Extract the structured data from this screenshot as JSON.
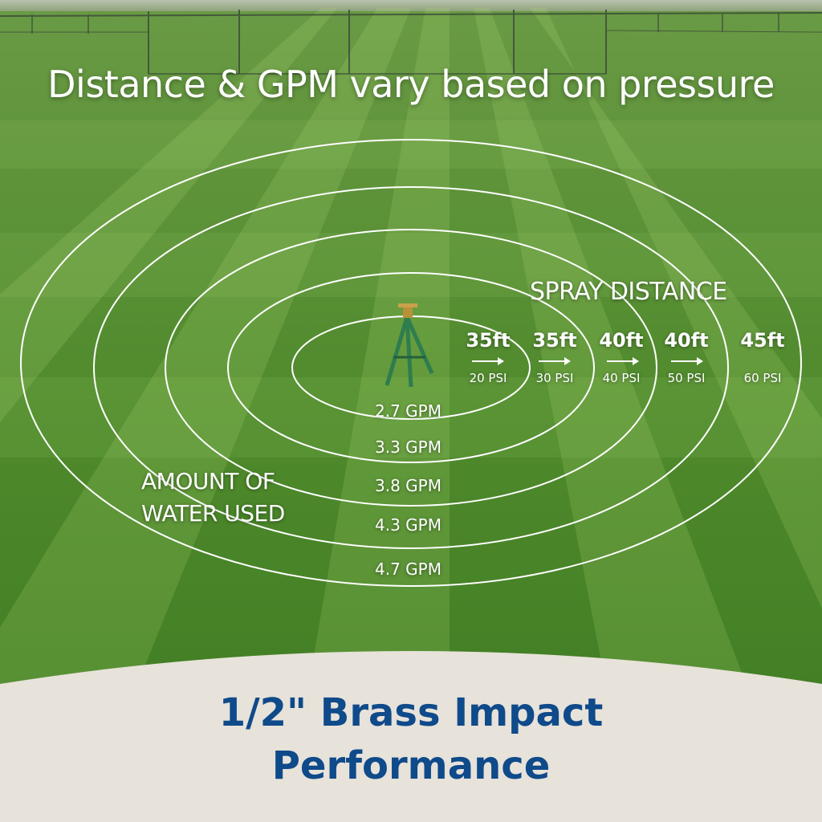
{
  "headline": "Distance & GPM vary based on pressure",
  "spray_distance": {
    "title": "SPRAY DISTANCE",
    "items": [
      {
        "distance": "35ft",
        "psi": "20 PSI"
      },
      {
        "distance": "35ft",
        "psi": "30 PSI"
      },
      {
        "distance": "40ft",
        "psi": "40 PSI"
      },
      {
        "distance": "40ft",
        "psi": "50 PSI"
      },
      {
        "distance": "45ft",
        "psi": "60 PSI"
      }
    ]
  },
  "water_used": {
    "title_line1": "AMOUNT OF",
    "title_line2": "WATER USED",
    "gpm": [
      "2.7 GPM",
      "3.3 GPM",
      "3.8 GPM",
      "4.3 GPM",
      "4.7 GPM"
    ]
  },
  "footer": {
    "line1": "1/2\" Brass Impact",
    "line2": "Performance"
  },
  "colors": {
    "grass_light": "#5e9e33",
    "grass_dark": "#3f7a22",
    "footer_bg": "#e7e2da",
    "footer_text": "#0f4a8a",
    "ring": "#ffffff"
  }
}
